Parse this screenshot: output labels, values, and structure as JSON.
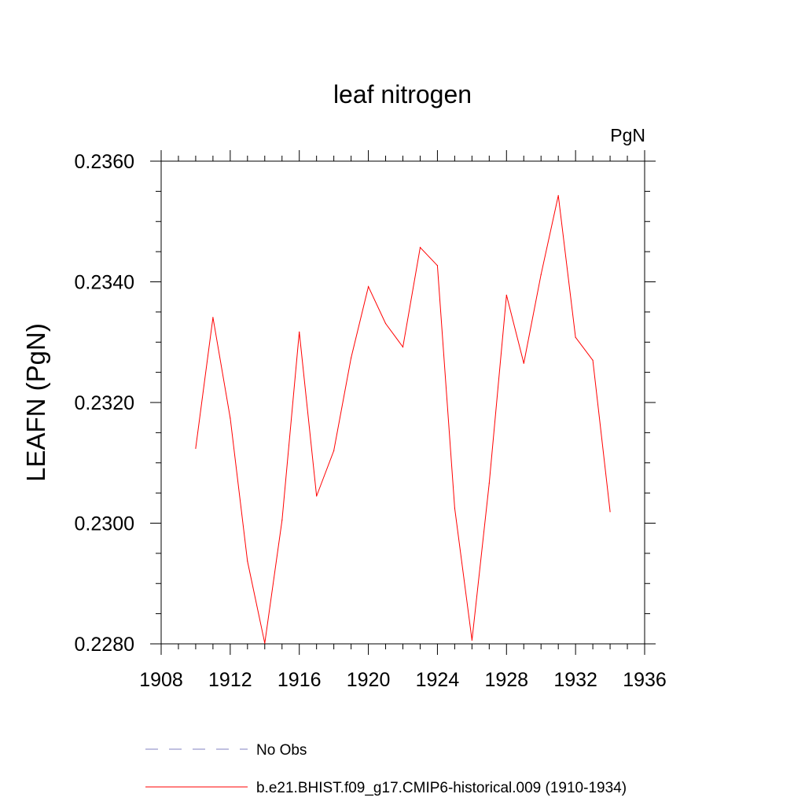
{
  "chart_data": {
    "type": "line",
    "title": "leaf nitrogen",
    "units": "PgN",
    "ylabel": "LEAFN  (PgN)",
    "xlabel": "",
    "xlim": [
      1908,
      1936
    ],
    "ylim": [
      0.228,
      0.236
    ],
    "x_ticks": [
      "1908",
      "1912",
      "1916",
      "1920",
      "1924",
      "1928",
      "1932",
      "1936"
    ],
    "y_ticks": [
      "0.2280",
      "0.2300",
      "0.2320",
      "0.2340",
      "0.2360"
    ],
    "grid": false,
    "legend_position": "bottom",
    "series": [
      {
        "name": "b.e21.BHIST.f09_g17.CMIP6-historical.009 (1910-1934)",
        "color": "#ff0000",
        "style": "solid",
        "x": [
          1910,
          1911,
          1912,
          1913,
          1914,
          1915,
          1916,
          1917,
          1918,
          1919,
          1920,
          1921,
          1922,
          1923,
          1924,
          1925,
          1926,
          1927,
          1928,
          1929,
          1930,
          1931,
          1932,
          1933,
          1934
        ],
        "y": [
          0.23124,
          0.23341,
          0.23174,
          0.22937,
          0.22801,
          0.23005,
          0.23317,
          0.23045,
          0.2312,
          0.23274,
          0.23392,
          0.23331,
          0.23292,
          0.23457,
          0.23427,
          0.23025,
          0.22806,
          0.23066,
          0.23378,
          0.23265,
          0.23412,
          0.23543,
          0.23308,
          0.2327,
          0.23019
        ]
      }
    ],
    "legend": [
      {
        "label": "No Obs",
        "color": "#8080c0",
        "style": "dashed"
      },
      {
        "label": "b.e21.BHIST.f09_g17.CMIP6-historical.009 (1910-1934)",
        "color": "#ff0000",
        "style": "solid"
      }
    ]
  }
}
